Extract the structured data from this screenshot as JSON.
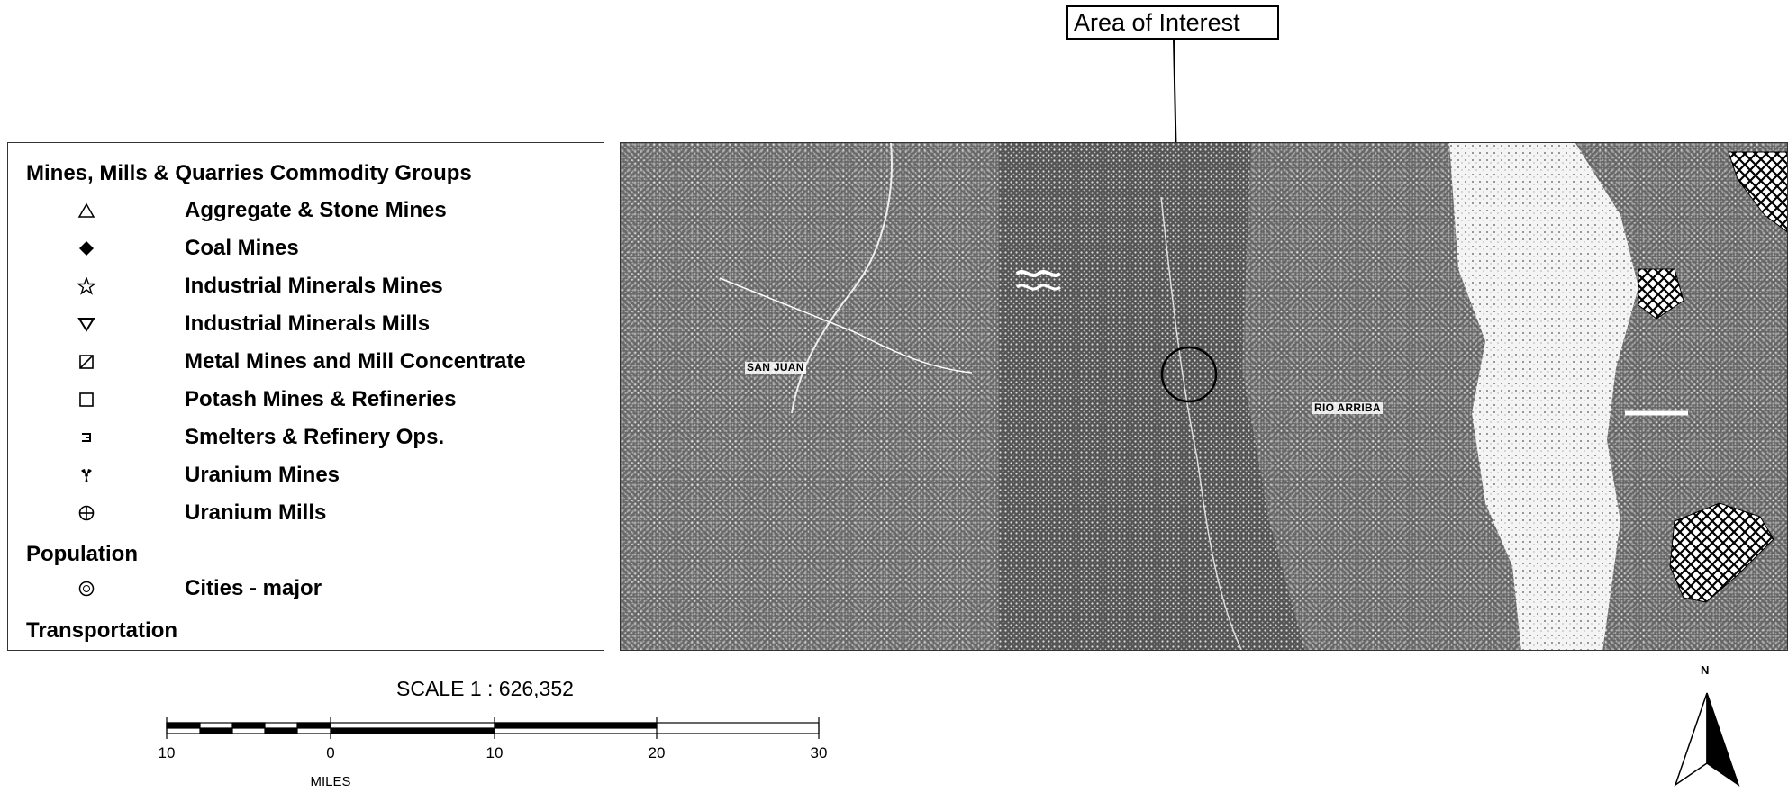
{
  "callout": {
    "label": "Area of Interest"
  },
  "legend": {
    "title": "Mines, Mills & Quarries Commodity Groups",
    "items": [
      {
        "label": "Aggregate & Stone Mines",
        "icon": "triangle-outline-icon"
      },
      {
        "label": "Coal Mines",
        "icon": "diamond-filled-icon"
      },
      {
        "label": "Industrial Minerals Mines",
        "icon": "star-outline-icon"
      },
      {
        "label": "Industrial Minerals Mills",
        "icon": "inverted-triangle-icon"
      },
      {
        "label": "Metal Mines and Mill Concentrate",
        "icon": "slashed-square-icon"
      },
      {
        "label": "Potash Mines & Refineries",
        "icon": "square-outline-icon"
      },
      {
        "label": "Smelters & Refinery Ops.",
        "icon": "smelter-icon"
      },
      {
        "label": "Uranium Mines",
        "icon": "radiation-icon"
      },
      {
        "label": "Uranium Mills",
        "icon": "circle-cross-icon"
      }
    ],
    "population_heading": "Population",
    "population_items": [
      {
        "label": "Cities - major",
        "icon": "city-circle-icon"
      }
    ],
    "transportation_heading": "Transportation"
  },
  "map": {
    "labels": {
      "san_juan": "SAN JUAN",
      "rio_arriba": "RIO ARRIBA"
    }
  },
  "scale": {
    "title": "SCALE 1 : 626,352",
    "ticks": [
      "10",
      "0",
      "10",
      "20",
      "30"
    ],
    "units": "MILES"
  },
  "north_arrow": {
    "letter": "N"
  }
}
